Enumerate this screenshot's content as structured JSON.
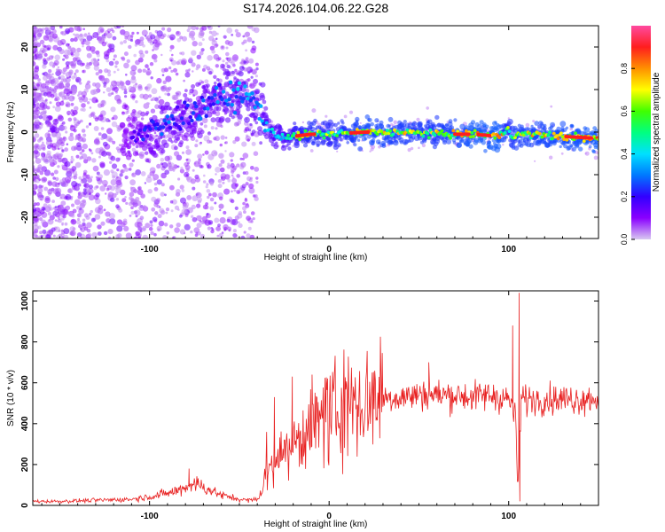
{
  "title": "S174.2026.104.06.22.G28",
  "chart_data": [
    {
      "type": "heatmap",
      "title": "S174.2026.104.06.22.G28",
      "xlabel": "Height of straight line (km)",
      "ylabel": "Frequency (Hz)",
      "xlim": [
        -165,
        150
      ],
      "ylim": [
        -25,
        25
      ],
      "xticks": [
        -100,
        0,
        100
      ],
      "yticks": [
        -20,
        -10,
        0,
        10,
        20
      ],
      "colorbar": {
        "label": "Normalized spectral amplitude",
        "range": [
          0,
          1
        ],
        "ticks": [
          "0.0",
          "0.2",
          "0.4",
          "0.6",
          "0.8"
        ],
        "colors": [
          "#d8c8f0",
          "#8a00ff",
          "#3200ff",
          "#0078ff",
          "#00e0ff",
          "#00ff80",
          "#40ff00",
          "#ffff00",
          "#ff9000",
          "#ff1e1e",
          "#ff4aa0"
        ]
      },
      "ridge": {
        "x": [
          -110,
          -100,
          -90,
          -80,
          -70,
          -60,
          -50,
          -45,
          -40,
          -37,
          -35,
          -33,
          -30,
          -25,
          -20,
          -10,
          0,
          20,
          40,
          60,
          80,
          95,
          100,
          102,
          110,
          130,
          150
        ],
        "freq": [
          -1,
          0,
          2,
          4,
          6,
          8,
          9,
          8,
          6,
          4,
          2,
          0.5,
          -0.8,
          -1,
          -1,
          -0.5,
          -0.5,
          0,
          0,
          -0.5,
          -0.5,
          -1,
          1,
          -1,
          -0.5,
          -1,
          -1.5
        ],
        "amp": [
          0.2,
          0.28,
          0.32,
          0.3,
          0.32,
          0.35,
          0.4,
          0.42,
          0.4,
          0.38,
          0.4,
          0.42,
          0.48,
          0.5,
          0.65,
          0.75,
          0.7,
          0.85,
          0.8,
          0.78,
          0.88,
          0.9,
          0.7,
          0.8,
          0.82,
          0.85,
          0.9
        ]
      }
    },
    {
      "type": "line",
      "xlabel": "Height of straight line (km)",
      "ylabel": "SNR (10 * v/v)",
      "xlim": [
        -165,
        150
      ],
      "ylim": [
        0,
        1050
      ],
      "xticks": [
        -100,
        0,
        100
      ],
      "yticks": [
        0,
        200,
        400,
        600,
        800,
        1000
      ],
      "series": [
        {
          "name": "SNR",
          "color": "#e82020",
          "x": [
            -165,
            -150,
            -130,
            -110,
            -95,
            -85,
            -80,
            -75,
            -70,
            -60,
            -50,
            -45,
            -40,
            -37,
            -35,
            -33,
            -30,
            -28,
            -25,
            -22,
            -20,
            -18,
            -15,
            -10,
            -5,
            0,
            5,
            10,
            20,
            30,
            40,
            50,
            55,
            60,
            70,
            80,
            90,
            95,
            100,
            102,
            104,
            105,
            106,
            107,
            108,
            110,
            120,
            130,
            140,
            150
          ],
          "y": [
            20,
            20,
            25,
            30,
            50,
            70,
            90,
            110,
            90,
            50,
            30,
            25,
            30,
            80,
            150,
            190,
            230,
            250,
            260,
            270,
            290,
            320,
            350,
            380,
            400,
            430,
            460,
            480,
            510,
            530,
            530,
            540,
            550,
            540,
            540,
            530,
            540,
            530,
            520,
            480,
            420,
            60,
            300,
            500,
            530,
            520,
            520,
            520,
            520,
            530
          ]
        }
      ],
      "spikes": [
        {
          "x": 102.2,
          "y": 880
        },
        {
          "x": 105.8,
          "y": 1040
        },
        {
          "x": 106.2,
          "y": 20
        },
        {
          "x": -20.5,
          "y": 630
        },
        {
          "x": -9.5,
          "y": 640
        },
        {
          "x": -30.5,
          "y": 530
        },
        {
          "x": 55.5,
          "y": 700
        },
        {
          "x": -78,
          "y": 180
        }
      ]
    }
  ]
}
